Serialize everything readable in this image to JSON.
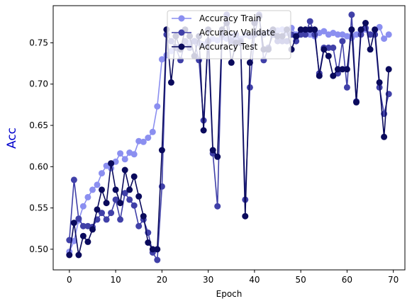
{
  "chart_data": {
    "type": "line",
    "title": "",
    "xlabel": "Epoch",
    "ylabel": "Acc",
    "ylabel_color": "#0000cc",
    "xlim": [
      -3.5,
      72.5
    ],
    "ylim": [
      0.475,
      0.795
    ],
    "xticks": [
      "0",
      "10",
      "20",
      "30",
      "40",
      "50",
      "60",
      "70"
    ],
    "xtick_values": [
      0,
      10,
      20,
      30,
      40,
      50,
      60,
      70
    ],
    "yticks": [
      "0.50",
      "0.55",
      "0.60",
      "0.65",
      "0.70",
      "0.75"
    ],
    "ytick_values": [
      0.5,
      0.55,
      0.6,
      0.65,
      0.7,
      0.75
    ],
    "grid": false,
    "legend_position": "top-center",
    "series": [
      {
        "name": "Accuracy Train",
        "color": "#8b8ff0",
        "x": [
          0,
          1,
          2,
          3,
          4,
          5,
          6,
          7,
          8,
          9,
          10,
          11,
          12,
          13,
          14,
          15,
          16,
          17,
          18,
          19,
          20,
          21,
          22,
          23,
          24,
          25,
          26,
          27,
          28,
          29,
          30,
          31,
          32,
          33,
          34,
          35,
          36,
          37,
          38,
          39,
          40,
          41,
          42,
          43,
          44,
          45,
          46,
          47,
          48,
          49,
          50,
          51,
          52,
          53,
          54,
          55,
          56,
          57,
          58,
          59,
          60,
          61,
          62,
          63,
          64,
          65,
          66,
          67,
          68,
          69
        ],
        "y": [
          0.497,
          0.51,
          0.535,
          0.552,
          0.563,
          0.572,
          0.578,
          0.592,
          0.601,
          0.598,
          0.606,
          0.616,
          0.609,
          0.617,
          0.615,
          0.631,
          0.63,
          0.635,
          0.642,
          0.673,
          0.73,
          0.735,
          0.74,
          0.745,
          0.745,
          0.748,
          0.75,
          0.752,
          0.75,
          0.748,
          0.752,
          0.755,
          0.753,
          0.757,
          0.755,
          0.758,
          0.756,
          0.755,
          0.76,
          0.758,
          0.76,
          0.762,
          0.76,
          0.763,
          0.76,
          0.765,
          0.766,
          0.762,
          0.768,
          0.76,
          0.762,
          0.765,
          0.76,
          0.758,
          0.762,
          0.764,
          0.76,
          0.762,
          0.76,
          0.76,
          0.758,
          0.756,
          0.76,
          0.764,
          0.766,
          0.76,
          0.76,
          0.769,
          0.755,
          0.76
        ]
      },
      {
        "name": "Accuracy Validate",
        "color": "#4040a8",
        "x": [
          0,
          1,
          2,
          3,
          4,
          5,
          6,
          7,
          8,
          9,
          10,
          11,
          12,
          13,
          14,
          15,
          16,
          17,
          18,
          19,
          20,
          21,
          22,
          23,
          24,
          25,
          26,
          27,
          28,
          29,
          30,
          31,
          32,
          33,
          34,
          35,
          36,
          37,
          38,
          39,
          40,
          41,
          42,
          43,
          44,
          45,
          46,
          47,
          48,
          49,
          50,
          51,
          52,
          53,
          54,
          55,
          56,
          57,
          58,
          59,
          60,
          61,
          62,
          63,
          64,
          65,
          66,
          67,
          68,
          69
        ],
        "y": [
          0.511,
          0.584,
          0.537,
          0.528,
          0.528,
          0.527,
          0.536,
          0.544,
          0.536,
          0.544,
          0.56,
          0.536,
          0.568,
          0.56,
          0.553,
          0.528,
          0.536,
          0.52,
          0.496,
          0.487,
          0.576,
          0.76,
          0.752,
          0.744,
          0.729,
          0.752,
          0.744,
          0.752,
          0.729,
          0.656,
          0.752,
          0.616,
          0.552,
          0.76,
          0.784,
          0.752,
          0.76,
          0.752,
          0.56,
          0.696,
          0.76,
          0.784,
          0.729,
          0.744,
          0.76,
          0.752,
          0.752,
          0.752,
          0.76,
          0.752,
          0.76,
          0.76,
          0.776,
          0.76,
          0.713,
          0.744,
          0.744,
          0.744,
          0.713,
          0.752,
          0.696,
          0.784,
          0.679,
          0.76,
          0.768,
          0.76,
          0.76,
          0.696,
          0.664,
          0.688
        ]
      },
      {
        "name": "Accuracy Test",
        "color": "#0a0a5c",
        "x": [
          0,
          1,
          2,
          3,
          4,
          5,
          6,
          7,
          8,
          9,
          10,
          11,
          12,
          13,
          14,
          15,
          16,
          17,
          18,
          19,
          20,
          21,
          22,
          23,
          24,
          25,
          26,
          27,
          28,
          29,
          30,
          31,
          32,
          33,
          34,
          35,
          36,
          37,
          38,
          39,
          40,
          41,
          42,
          43,
          44,
          45,
          46,
          47,
          48,
          49,
          50,
          51,
          52,
          53,
          54,
          55,
          56,
          57,
          58,
          59,
          60,
          61,
          62,
          63,
          64,
          65,
          66,
          67,
          68,
          69
        ],
        "y": [
          0.493,
          0.532,
          0.493,
          0.516,
          0.509,
          0.524,
          0.548,
          0.572,
          0.556,
          0.604,
          0.572,
          0.556,
          0.596,
          0.572,
          0.588,
          0.564,
          0.54,
          0.508,
          0.5,
          0.5,
          0.62,
          0.766,
          0.702,
          0.758,
          0.742,
          0.766,
          0.758,
          0.734,
          0.758,
          0.644,
          0.766,
          0.62,
          0.612,
          0.766,
          0.774,
          0.726,
          0.75,
          0.75,
          0.54,
          0.726,
          0.774,
          0.782,
          0.742,
          0.742,
          0.766,
          0.758,
          0.758,
          0.766,
          0.742,
          0.758,
          0.766,
          0.766,
          0.766,
          0.766,
          0.71,
          0.742,
          0.734,
          0.71,
          0.718,
          0.718,
          0.718,
          0.766,
          0.678,
          0.766,
          0.774,
          0.742,
          0.766,
          0.702,
          0.636,
          0.718
        ]
      }
    ]
  }
}
